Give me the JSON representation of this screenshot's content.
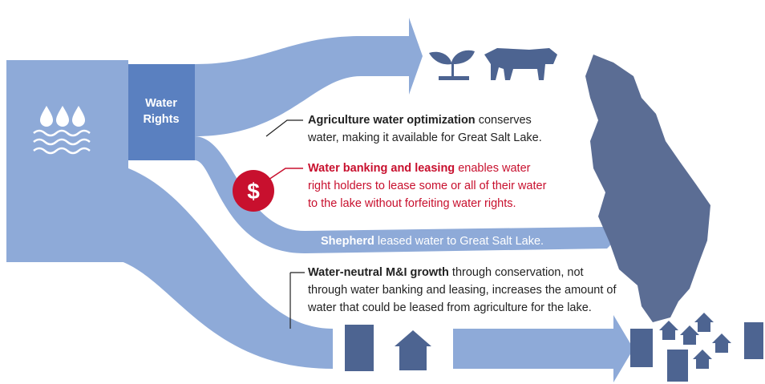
{
  "water_rights": [
    "Water",
    "Rights"
  ],
  "dollar_icon": "$",
  "agriculture": {
    "bold": "Agriculture water optimization",
    "lines": [
      " conserves",
      "water, making it available for Great Salt Lake."
    ]
  },
  "banking": {
    "bold": "Water banking and leasing",
    "lines": [
      " enables water",
      "right holders to lease some or all of their water",
      "to the lake without forfeiting water rights."
    ]
  },
  "shepherd": {
    "bold": "Shepherd",
    "lines": [
      " leased water to Great Salt Lake."
    ]
  },
  "growth": {
    "bold": "Water-neutral M&I growth",
    "lines": [
      " through conservation, not",
      "through water banking and leasing, increases the amount of",
      "water that could be leased from agriculture for the lake."
    ]
  }
}
